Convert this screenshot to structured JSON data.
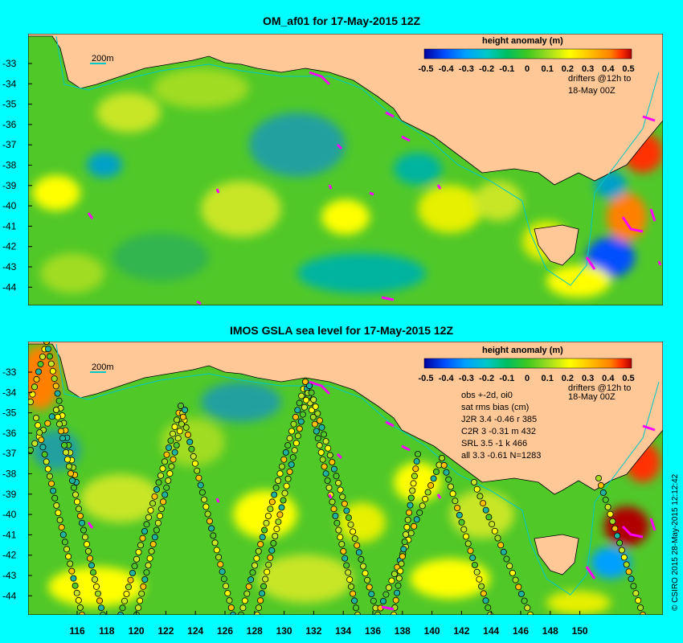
{
  "panels": [
    {
      "title": "OM_af01 for 17-May-2015 12Z",
      "scale_label": "200m",
      "drifter_note_line1": "drifters @12h to",
      "drifter_note_line2": "18-May 00Z",
      "stats": []
    },
    {
      "title": "IMOS GSLA sea level  for 17-May-2015 12Z",
      "scale_label": "200m",
      "drifter_note_line1": "drifters @12h to",
      "drifter_note_line2": "18-May 00Z",
      "stats": [
        "obs +-2d, oi0",
        "sat rms bias (cm)",
        "J2R   3.4 -0.46 r 385",
        "C2R   3 -0.31 m 432",
        "SRL   3.5 -1 k 466",
        "all   3.3 -0.61 N=1283"
      ]
    }
  ],
  "colorbar": {
    "title": "height anomaly (m)",
    "ticks": [
      "-0.5",
      "-0.4",
      "-0.3",
      "-0.2",
      "-0.1",
      "0",
      "0.1",
      "0.2",
      "0.3",
      "0.4",
      "0.5"
    ],
    "colors": [
      "#0000a0",
      "#0050ff",
      "#00a0ff",
      "#00c8c8",
      "#00c060",
      "#40c820",
      "#a0dc20",
      "#ffff00",
      "#ffc000",
      "#ff8000",
      "#ff3000",
      "#b00000"
    ]
  },
  "y_ticks": [
    "-33",
    "-34",
    "-35",
    "-36",
    "-37",
    "-38",
    "-39",
    "-40",
    "-41",
    "-42",
    "-43",
    "-44"
  ],
  "x_ticks": [
    "116",
    "118",
    "120",
    "122",
    "124",
    "126",
    "128",
    "130",
    "132",
    "134",
    "136",
    "138",
    "140",
    "142",
    "144",
    "146",
    "148",
    "150"
  ],
  "credit": "© CSIRO 2015  28-May-2015 12:12:42",
  "colors": {
    "background": "#00ffff",
    "land": "#ffc896",
    "sea_base": "#50c828",
    "drifter": "#ff00ff",
    "isobath": "#00c8c8"
  }
}
